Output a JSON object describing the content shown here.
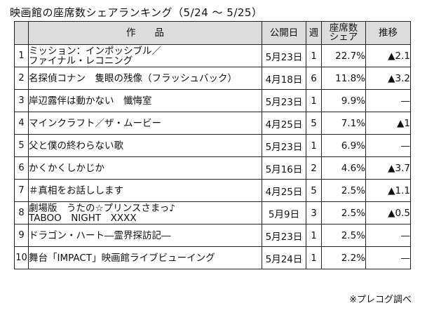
{
  "title": "映画館の座席数シェアランキング（5/24 ～ 5/25）",
  "headers": {
    "rank": "",
    "title": "作　　品",
    "release": "公開日",
    "weeks": "週",
    "share_line1": "座席数",
    "share_line2": "シェア",
    "trend": "推移"
  },
  "rows": [
    {
      "rank": "1",
      "title_line1": "ミッション：インポッシブル／",
      "title_line2": "ファイナル・レコニング",
      "release": "5月23日",
      "weeks": "1",
      "share": "22.7%",
      "trend": "▲2.1"
    },
    {
      "rank": "2",
      "title_line1": "名探偵コナン　隻眼の残像（フラッシュバック）",
      "title_line2": "",
      "release": "4月18日",
      "weeks": "6",
      "share": "11.8%",
      "trend": "▲3.2"
    },
    {
      "rank": "3",
      "title_line1": "岸辺露伴は動かない　懺悔室",
      "title_line2": "",
      "release": "5月23日",
      "weeks": "1",
      "share": "9.9%",
      "trend": "—"
    },
    {
      "rank": "4",
      "title_line1": "マインクラフト／ザ・ムービー",
      "title_line2": "",
      "release": "4月25日",
      "weeks": "5",
      "share": "7.1%",
      "trend": "▲1"
    },
    {
      "rank": "5",
      "title_line1": "父と僕の終わらない歌",
      "title_line2": "",
      "release": "5月23日",
      "weeks": "1",
      "share": "6.9%",
      "trend": "—"
    },
    {
      "rank": "6",
      "title_line1": "かくかくしかじか",
      "title_line2": "",
      "release": "5月16日",
      "weeks": "2",
      "share": "4.6%",
      "trend": "▲3.7"
    },
    {
      "rank": "7",
      "title_line1": "＃真相をお話しします",
      "title_line2": "",
      "release": "4月25日",
      "weeks": "5",
      "share": "2.5%",
      "trend": "▲1.1"
    },
    {
      "rank": "8",
      "title_line1": "劇場版　うたの☆プリンスさまっ♪",
      "title_line2": "TABOO　NIGHT　XXXX",
      "release": "5月9日",
      "weeks": "3",
      "share": "2.5%",
      "trend": "▲0.5"
    },
    {
      "rank": "9",
      "title_line1": "ドラゴン・ハート―霊界探訪記―",
      "title_line2": "",
      "release": "5月23日",
      "weeks": "1",
      "share": "2.5%",
      "trend": "—"
    },
    {
      "rank": "10",
      "title_line1": "舞台「IMPACT」映画館ライブビューイング",
      "title_line2": "",
      "release": "5月24日",
      "weeks": "1",
      "share": "2.2%",
      "trend": "—"
    }
  ],
  "note": "※プレコグ調べ"
}
